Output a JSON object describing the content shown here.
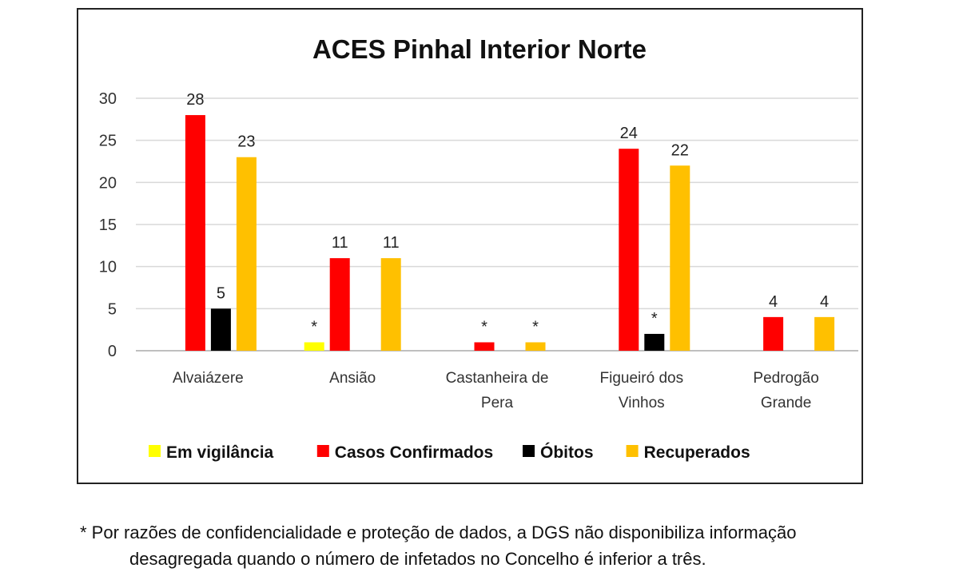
{
  "chart_data": {
    "type": "bar",
    "title": "ACES Pinhal Interior Norte",
    "categories": [
      [
        "Alvaiázere"
      ],
      [
        "Ansião"
      ],
      [
        "Castanheira de",
        "Pera"
      ],
      [
        "Figueiró dos",
        "Vinhos"
      ],
      [
        "Pedrogão",
        "Grande"
      ]
    ],
    "series": [
      {
        "name": "Em vigilância",
        "color": "#ffff00",
        "values": [
          null,
          1,
          null,
          null,
          null
        ],
        "labels": [
          "",
          "*",
          "",
          "",
          ""
        ]
      },
      {
        "name": "Casos Confirmados",
        "color": "#ff0000",
        "values": [
          28,
          11,
          1,
          24,
          4
        ],
        "labels": [
          "28",
          "11",
          "*",
          "24",
          "4"
        ]
      },
      {
        "name": "Óbitos",
        "color": "#000000",
        "values": [
          5,
          null,
          null,
          2,
          null
        ],
        "labels": [
          "5",
          "",
          "",
          "*",
          ""
        ]
      },
      {
        "name": "Recuperados",
        "color": "#ffc000",
        "values": [
          23,
          11,
          1,
          22,
          4
        ],
        "labels": [
          "23",
          "11",
          "*",
          "22",
          "4"
        ]
      }
    ],
    "yticks": [
      0,
      5,
      10,
      15,
      20,
      25,
      30
    ],
    "ylim": [
      0,
      30
    ],
    "grid": true,
    "legend": "bottom"
  },
  "footnote": {
    "line1": "* Por razões de confidencialidade e proteção de dados, a DGS não disponibiliza informação",
    "line2": "desagregada quando o número de infetados no Concelho é inferior a três."
  }
}
